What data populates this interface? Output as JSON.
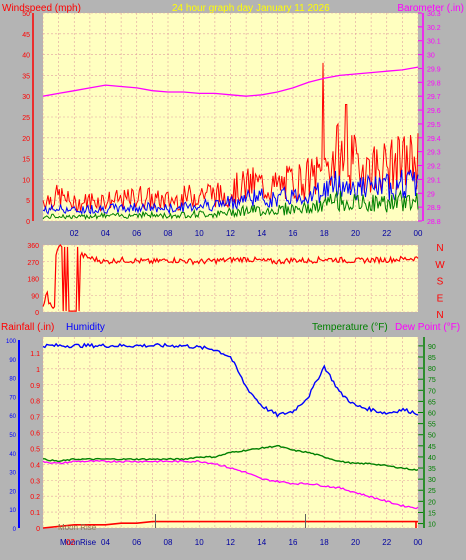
{
  "colors": {
    "background": "#b4b4b4",
    "plot_bg": "#ffffc0",
    "grid": "#e0a0a0",
    "wind": "#ff0000",
    "gust_mid": "#0000ff",
    "wind_low": "#008000",
    "barometer": "#ff00ff",
    "direction": "#ff0000",
    "humidity": "#0000ff",
    "temperature": "#008000",
    "dewpoint": "#ff00ff",
    "rainfall": "#ff0000",
    "title": "#ffff00"
  },
  "header": {
    "title": "24 hour graph day   January 11 2026",
    "left_label": "Windspeed (mph)",
    "right_label": "Barometer (.in)"
  },
  "lower_header": {
    "rain_label": "Rainfall (.in)",
    "humidity_label": "Humidity",
    "temp_label": "Temperature (°F)",
    "dew_label": "Dew Point (°F)"
  },
  "moon": {
    "rise_label": "Moon Rise",
    "bottom_label": "MoonRise",
    "bottom_digits": "02"
  },
  "chart_data": [
    {
      "type": "line",
      "name": "wind-barometer",
      "x_ticks": [
        "02",
        "04",
        "06",
        "08",
        "10",
        "12",
        "14",
        "16",
        "18",
        "20",
        "22",
        "00"
      ],
      "y_left": {
        "label": "Windspeed (mph)",
        "range": [
          0,
          50
        ],
        "ticks": [
          "0",
          "5",
          "10",
          "15",
          "20",
          "25",
          "30",
          "35",
          "40",
          "45",
          "50"
        ]
      },
      "y_right": {
        "label": "Barometer (.in)",
        "range": [
          28.8,
          30.3
        ],
        "ticks": [
          "28.8",
          "28.9",
          "29",
          "29.1",
          "29.2",
          "29.3",
          "29.4",
          "29.5",
          "29.6",
          "29.7",
          "29.8",
          "29.9",
          "30",
          "30.1",
          "30.2",
          "30.3"
        ]
      },
      "wind_gust_hourly": [
        5,
        6,
        4,
        5,
        5,
        5,
        6,
        5,
        5,
        6,
        7,
        6,
        8,
        9,
        8,
        9,
        10,
        11,
        16,
        14,
        13,
        13,
        14,
        15
      ],
      "wind_avg_hourly": [
        2.5,
        3,
        2.5,
        3,
        3,
        3,
        3.5,
        3,
        3,
        3.5,
        4,
        4,
        5,
        6,
        5,
        6,
        6,
        7,
        9,
        8,
        8,
        8,
        9,
        9
      ],
      "wind_low_hourly": [
        1,
        1.5,
        1,
        1.5,
        1.5,
        1.5,
        2,
        1.5,
        1.5,
        2,
        2,
        2,
        3,
        3,
        3,
        3.5,
        3.5,
        4,
        6,
        5,
        5,
        5,
        5.5,
        6
      ],
      "barometer_hourly": [
        29.7,
        29.72,
        29.74,
        29.76,
        29.78,
        29.77,
        29.76,
        29.74,
        29.73,
        29.73,
        29.72,
        29.72,
        29.71,
        29.7,
        29.71,
        29.73,
        29.76,
        29.8,
        29.83,
        29.85,
        29.86,
        29.87,
        29.88,
        29.89,
        29.91
      ]
    },
    {
      "type": "line",
      "name": "wind-direction",
      "x_ticks": [
        "02",
        "04",
        "06",
        "08",
        "10",
        "12",
        "14",
        "16",
        "18",
        "20",
        "22",
        "00"
      ],
      "y": {
        "range": [
          0,
          360
        ],
        "ticks": [
          "0",
          "90",
          "180",
          "270",
          "360"
        ]
      },
      "compass": [
        "N",
        "W",
        "S",
        "E",
        "N"
      ],
      "direction_hourly": [
        30,
        350,
        320,
        290,
        270,
        280,
        275,
        270,
        280,
        275,
        270,
        275,
        280,
        285,
        275,
        270,
        280,
        275,
        285,
        280,
        275,
        280,
        280,
        285,
        290
      ]
    },
    {
      "type": "line",
      "name": "humidity-temperature",
      "x_ticks": [
        "02",
        "04",
        "06",
        "08",
        "10",
        "12",
        "14",
        "16",
        "18",
        "20",
        "22",
        "00"
      ],
      "y_left_rain": {
        "range": [
          0,
          1.2
        ],
        "ticks": [
          "0",
          "0.1",
          "0.2",
          "0.3",
          "0.4",
          "0.5",
          "0.6",
          "0.7",
          "0.8",
          "0.9",
          "1",
          "1.1"
        ]
      },
      "y_left_humidity": {
        "range": [
          0,
          100
        ],
        "ticks": [
          "0",
          "10",
          "20",
          "30",
          "40",
          "50",
          "60",
          "70",
          "80",
          "90",
          "100"
        ]
      },
      "y_right": {
        "range": [
          8,
          94
        ],
        "ticks": [
          "10",
          "15",
          "20",
          "25",
          "30",
          "35",
          "40",
          "45",
          "50",
          "55",
          "60",
          "65",
          "70",
          "75",
          "80",
          "85",
          "90"
        ]
      },
      "humidity_hourly": [
        97,
        97,
        97,
        97,
        97,
        97,
        97,
        97,
        97,
        97,
        96,
        95,
        91,
        75,
        65,
        60,
        62,
        70,
        86,
        72,
        65,
        63,
        61,
        63,
        61
      ],
      "temperature_hourly": [
        39,
        38,
        39,
        39,
        39,
        39,
        39,
        39,
        39,
        39,
        40,
        40,
        42,
        43,
        44,
        45,
        43,
        42,
        40,
        38,
        37,
        37,
        36,
        35,
        34
      ],
      "dewpoint_hourly": [
        38,
        37,
        38,
        38,
        38,
        38,
        38,
        38,
        38,
        38,
        38,
        37,
        35,
        33,
        30,
        29,
        28,
        28,
        27,
        26,
        24,
        22,
        20,
        18,
        17
      ],
      "rainfall_hourly": [
        0,
        0.01,
        0.02,
        0.02,
        0.02,
        0.03,
        0.03,
        0.04,
        0.04,
        0.04,
        0.04,
        0.04,
        0.04,
        0.04,
        0.04,
        0.04,
        0.04,
        0.04,
        0.04,
        0.04,
        0.04,
        0.04,
        0.04,
        0.04,
        0.04
      ]
    }
  ]
}
